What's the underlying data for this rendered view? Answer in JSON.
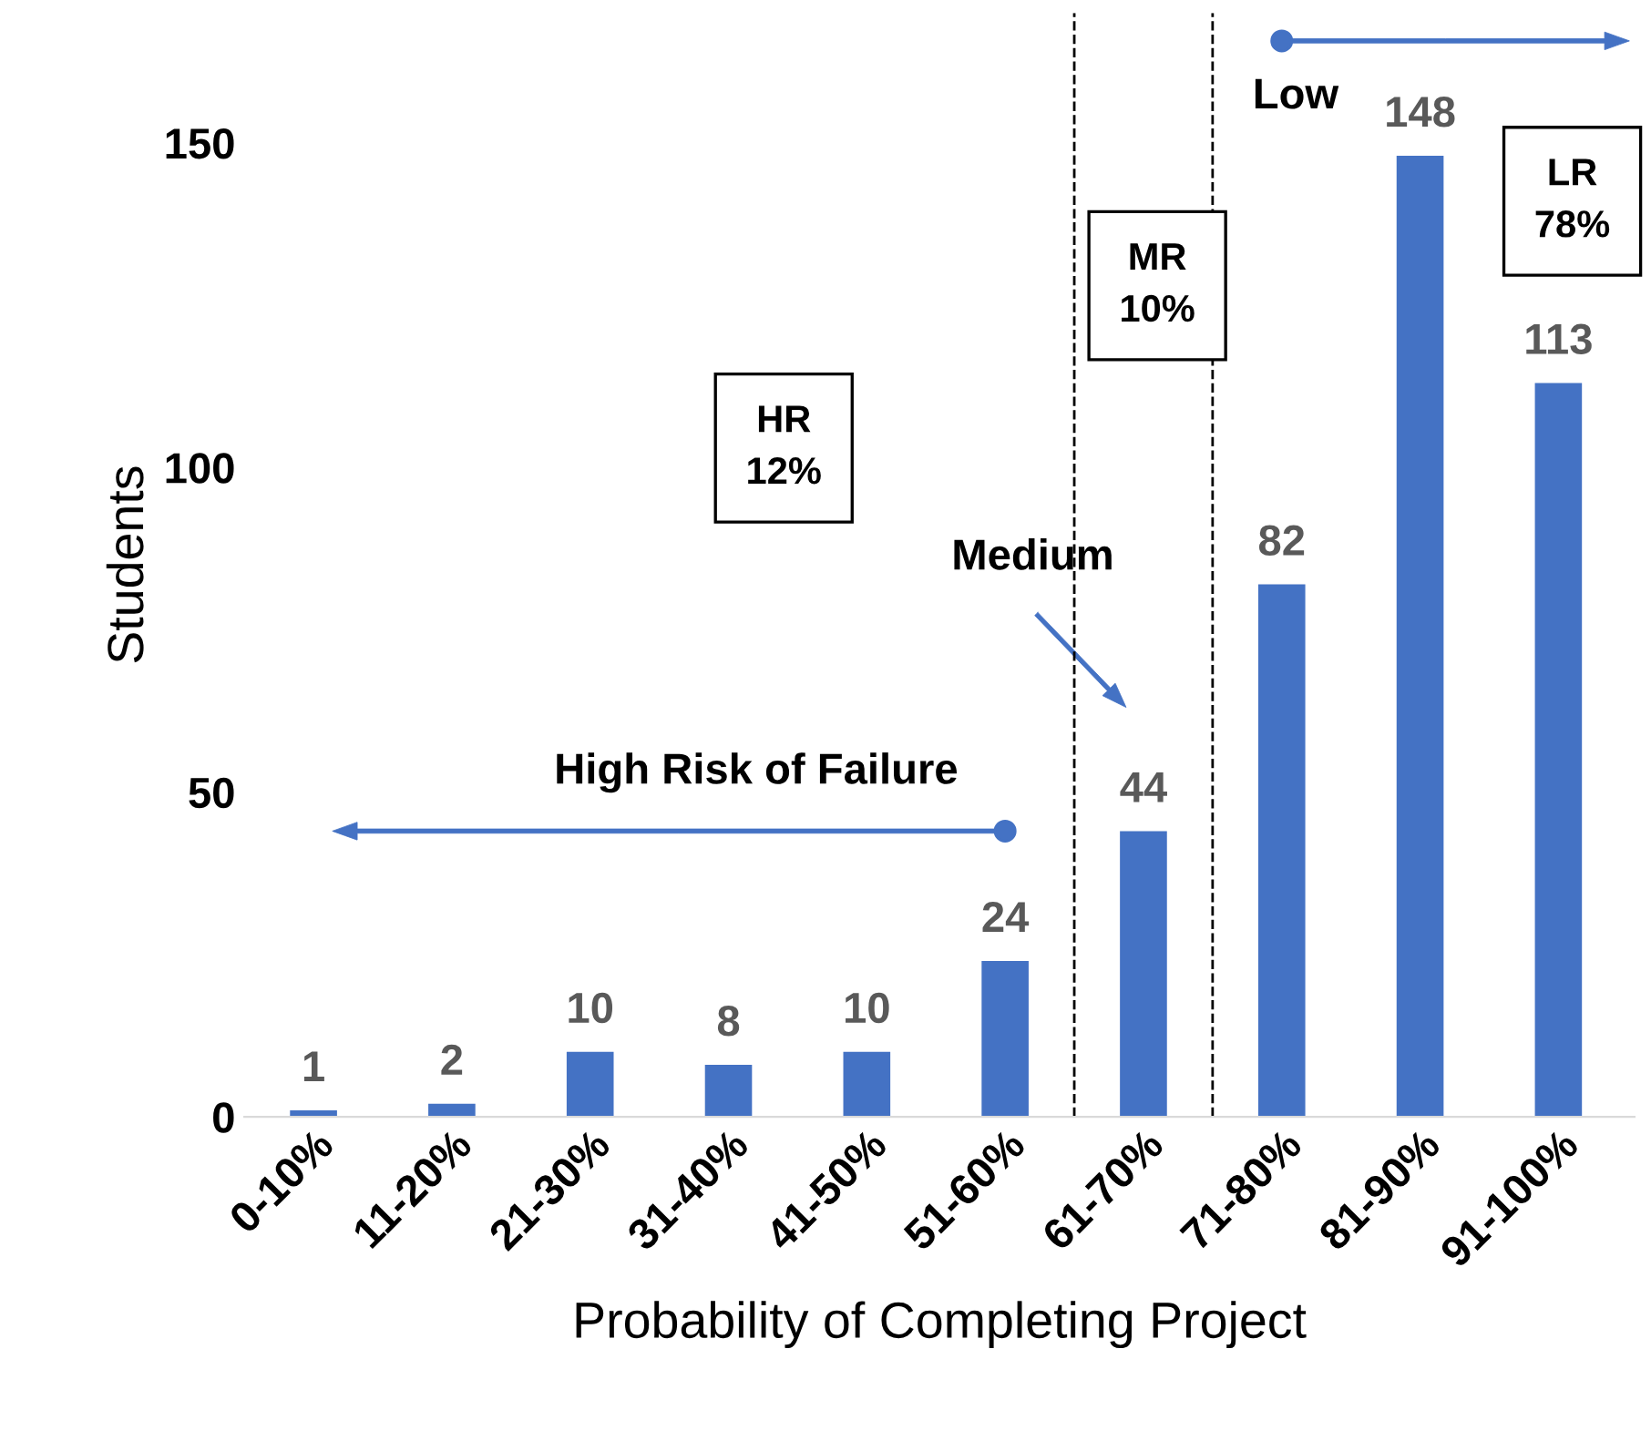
{
  "chart_data": {
    "type": "bar",
    "xlabel": "Probability of Completing Project",
    "ylabel": "Students",
    "categories": [
      "0-10%",
      "11-20%",
      "21-30%",
      "31-40%",
      "41-50%",
      "51-60%",
      "61-70%",
      "71-80%",
      "81-90%",
      "91-100%"
    ],
    "values": [
      1,
      2,
      10,
      8,
      10,
      24,
      44,
      82,
      148,
      113
    ],
    "color": "#4472c4",
    "data_labels": true,
    "ylim": [
      0,
      170
    ],
    "yticks": [
      0,
      50,
      100,
      150
    ],
    "grid": false,
    "annotations": [
      "HR\n12%",
      "MR\n10%",
      "LR\n78%",
      "High Risk of Failure",
      "Medium",
      "Low"
    ]
  }
}
